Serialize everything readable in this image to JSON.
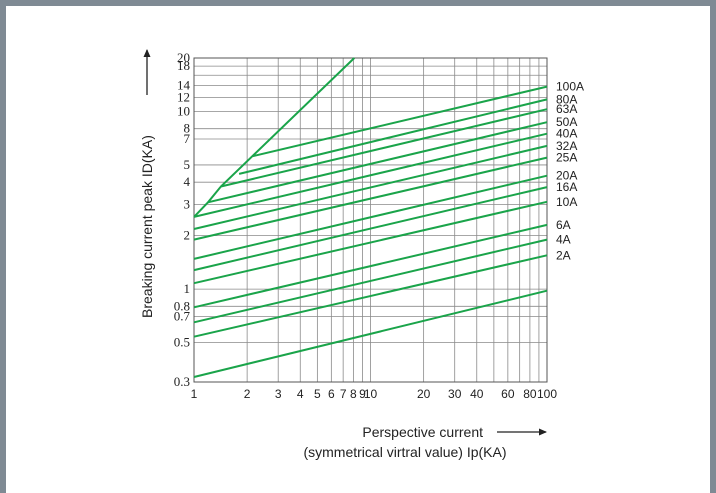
{
  "chart_data": {
    "type": "line",
    "x_scale": "log",
    "y_scale": "log",
    "xlim": [
      1,
      100
    ],
    "ylim": [
      0.3,
      20
    ],
    "grid": true,
    "x_ticks": [
      1,
      2,
      3,
      4,
      5,
      6,
      7,
      8,
      9,
      10,
      20,
      30,
      40,
      60,
      80,
      100
    ],
    "x_tick_labels": [
      "1",
      "2",
      "3",
      "4",
      "5",
      "6",
      "7",
      "8",
      "9",
      "10",
      "20",
      "30",
      "40",
      "60",
      "80",
      "100"
    ],
    "x_minor": [
      50,
      70,
      90
    ],
    "y_ticks": [
      0.3,
      0.5,
      0.7,
      0.8,
      1,
      2,
      3,
      4,
      5,
      7,
      8,
      10,
      12,
      14,
      18,
      20
    ],
    "y_tick_labels": [
      "0.3",
      "0.5",
      "0.7",
      "0.8",
      "1",
      "2",
      "3",
      "4",
      "5",
      "7",
      "8",
      "10",
      "12",
      "14",
      "18",
      "20"
    ],
    "y_minor": [
      16
    ],
    "xlabel_line1": "Perspective current",
    "xlabel_line2": "(symmetrical virtral value) Ip(KA)",
    "ylabel": "Breaking current peak ID(KA)",
    "envelope": {
      "x": [
        1,
        1.2,
        1.42,
        8.1
      ],
      "y": [
        2.55,
        3.08,
        3.78,
        20
      ]
    },
    "series": [
      {
        "name": "100A",
        "x": [
          2.15,
          100
        ],
        "y": [
          5.6,
          13.8
        ]
      },
      {
        "name": "80A",
        "x": [
          1.8,
          100
        ],
        "y": [
          4.45,
          11.7
        ]
      },
      {
        "name": "63A",
        "x": [
          1.42,
          100
        ],
        "y": [
          3.78,
          10.3
        ]
      },
      {
        "name": "50A",
        "x": [
          1.2,
          100
        ],
        "y": [
          3.08,
          8.7
        ]
      },
      {
        "name": "40A",
        "x": [
          1,
          100
        ],
        "y": [
          2.55,
          7.5
        ]
      },
      {
        "name": "32A",
        "x": [
          1,
          100
        ],
        "y": [
          2.18,
          6.4
        ]
      },
      {
        "name": "25A",
        "x": [
          1,
          100
        ],
        "y": [
          1.9,
          5.5
        ]
      },
      {
        "name": "20A",
        "x": [
          1,
          100
        ],
        "y": [
          1.48,
          4.35
        ]
      },
      {
        "name": "16A",
        "x": [
          1,
          100
        ],
        "y": [
          1.28,
          3.75
        ]
      },
      {
        "name": "10A",
        "x": [
          1,
          100
        ],
        "y": [
          1.08,
          3.1
        ]
      },
      {
        "name": "6A",
        "x": [
          1,
          100
        ],
        "y": [
          0.79,
          2.3
        ]
      },
      {
        "name": "4A",
        "x": [
          1,
          100
        ],
        "y": [
          0.65,
          1.9
        ]
      },
      {
        "name": "2A",
        "x": [
          1,
          100
        ],
        "y": [
          0.54,
          1.55
        ]
      },
      {
        "name": "",
        "x": [
          1,
          100
        ],
        "y": [
          0.32,
          0.98
        ]
      }
    ],
    "line_color": "#1aa44a",
    "grid_color": "#8a8a8a"
  }
}
